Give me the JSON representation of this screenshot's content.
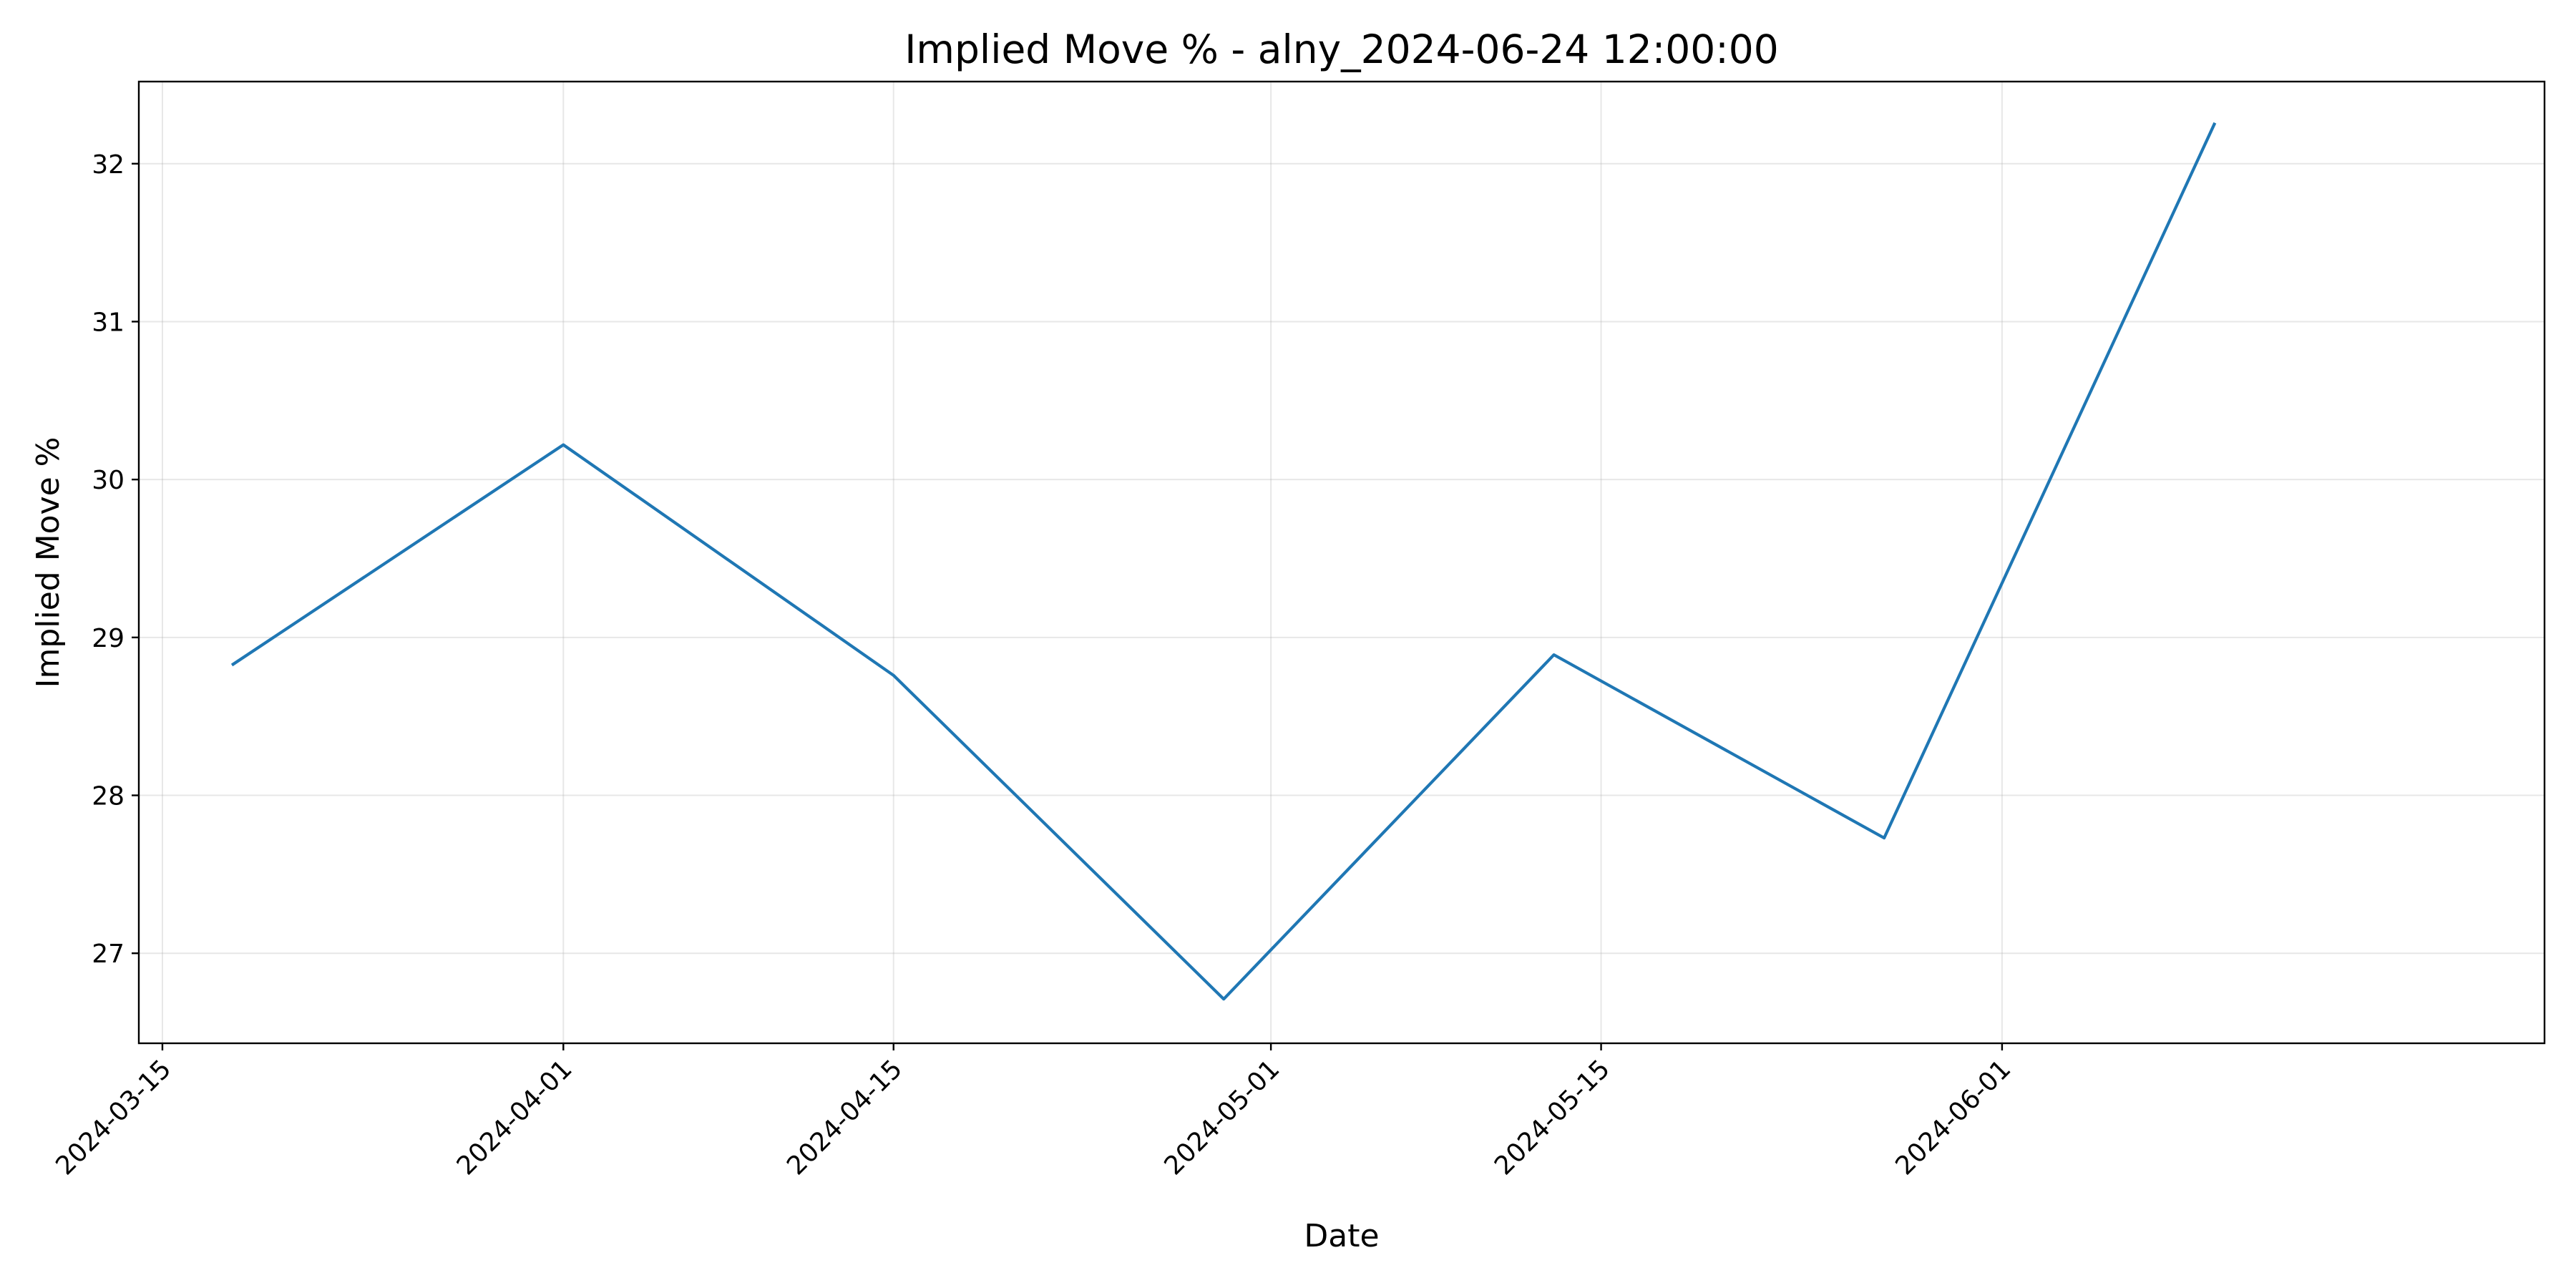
{
  "chart_data": {
    "type": "line",
    "title": "Implied Move % - alny_2024-06-24 12:00:00",
    "xlabel": "Date",
    "ylabel": "Implied Move %",
    "x_ticks": [
      "2024-03-15",
      "2024-04-01",
      "2024-04-15",
      "2024-05-01",
      "2024-05-15",
      "2024-06-01"
    ],
    "y_ticks": [
      "27",
      "28",
      "29",
      "30",
      "31",
      "32"
    ],
    "xlim": [
      "2024-03-14",
      "2024-06-24"
    ],
    "ylim": [
      26.43,
      32.52
    ],
    "grid": true,
    "series": [
      {
        "color": "#1f77b4",
        "x": [
          "2024-03-18",
          "2024-04-01",
          "2024-04-15",
          "2024-04-29",
          "2024-05-13",
          "2024-05-27",
          "2024-06-10"
        ],
        "y": [
          28.83,
          30.22,
          28.76,
          26.71,
          28.89,
          27.73,
          32.25
        ]
      }
    ]
  }
}
